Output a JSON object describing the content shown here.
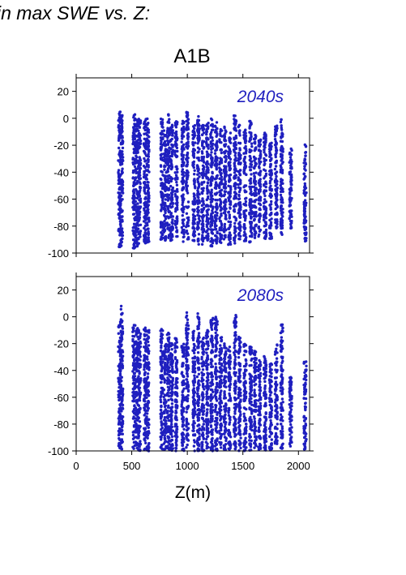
{
  "header": {
    "heading": "in max SWE vs. Z:",
    "scenario": "A1B"
  },
  "colors": {
    "points": "#1f1fbf",
    "axis": "#000000"
  },
  "chart_data": [
    {
      "type": "scatter",
      "panel_label": "2040s",
      "xlabel": "Z(m)",
      "ylabel": "",
      "xlim": [
        0,
        2100
      ],
      "ylim": [
        -100,
        30
      ],
      "x_ticks": [
        0,
        500,
        1000,
        1500,
        2000
      ],
      "y_ticks": [
        20,
        0,
        -20,
        -40,
        -60,
        -80,
        -100
      ],
      "grid": false,
      "elevation_bands": [
        {
          "z": 390,
          "y_min": -96,
          "y_max": 5
        },
        {
          "z": 410,
          "y_min": -95,
          "y_max": 3
        },
        {
          "z": 520,
          "y_min": -97,
          "y_max": 3
        },
        {
          "z": 545,
          "y_min": -95,
          "y_max": 2
        },
        {
          "z": 570,
          "y_min": -93,
          "y_max": 2
        },
        {
          "z": 620,
          "y_min": -93,
          "y_max": 1
        },
        {
          "z": 645,
          "y_min": -92,
          "y_max": 0
        },
        {
          "z": 770,
          "y_min": -90,
          "y_max": 0
        },
        {
          "z": 800,
          "y_min": -92,
          "y_max": -8
        },
        {
          "z": 830,
          "y_min": -90,
          "y_max": 3
        },
        {
          "z": 860,
          "y_min": -91,
          "y_max": -5
        },
        {
          "z": 900,
          "y_min": -88,
          "y_max": -2
        },
        {
          "z": 960,
          "y_min": -93,
          "y_max": 0
        },
        {
          "z": 1000,
          "y_min": -90,
          "y_max": 5
        },
        {
          "z": 1060,
          "y_min": -92,
          "y_max": -5
        },
        {
          "z": 1100,
          "y_min": -94,
          "y_max": 2
        },
        {
          "z": 1140,
          "y_min": -94,
          "y_max": -5
        },
        {
          "z": 1180,
          "y_min": -93,
          "y_max": -3
        },
        {
          "z": 1220,
          "y_min": -95,
          "y_max": 0
        },
        {
          "z": 1260,
          "y_min": -94,
          "y_max": -3
        },
        {
          "z": 1300,
          "y_min": -93,
          "y_max": -8
        },
        {
          "z": 1340,
          "y_min": -90,
          "y_max": -5
        },
        {
          "z": 1380,
          "y_min": -94,
          "y_max": -10
        },
        {
          "z": 1430,
          "y_min": -93,
          "y_max": 2
        },
        {
          "z": 1470,
          "y_min": -90,
          "y_max": -5
        },
        {
          "z": 1520,
          "y_min": -93,
          "y_max": -8
        },
        {
          "z": 1570,
          "y_min": -92,
          "y_max": -2
        },
        {
          "z": 1610,
          "y_min": -90,
          "y_max": -12
        },
        {
          "z": 1650,
          "y_min": -88,
          "y_max": -15
        },
        {
          "z": 1700,
          "y_min": -90,
          "y_max": -10
        },
        {
          "z": 1750,
          "y_min": -90,
          "y_max": -18
        },
        {
          "z": 1800,
          "y_min": -82,
          "y_max": -5
        },
        {
          "z": 1850,
          "y_min": -88,
          "y_max": 0
        },
        {
          "z": 1930,
          "y_min": -82,
          "y_max": -22
        },
        {
          "z": 2060,
          "y_min": -92,
          "y_max": -18
        }
      ]
    },
    {
      "type": "scatter",
      "panel_label": "2080s",
      "xlabel": "Z(m)",
      "ylabel": "",
      "xlim": [
        0,
        2100
      ],
      "ylim": [
        -100,
        30
      ],
      "x_ticks": [
        0,
        500,
        1000,
        1500,
        2000
      ],
      "x_tick_labels": [
        "0",
        "500",
        "1000",
        "1500",
        "2000"
      ],
      "y_ticks": [
        20,
        0,
        -20,
        -40,
        -60,
        -80,
        -100
      ],
      "grid": false,
      "elevation_bands": [
        {
          "z": 390,
          "y_min": -100,
          "y_max": -3
        },
        {
          "z": 410,
          "y_min": -100,
          "y_max": 8
        },
        {
          "z": 520,
          "y_min": -100,
          "y_max": -5
        },
        {
          "z": 545,
          "y_min": -100,
          "y_max": -8
        },
        {
          "z": 570,
          "y_min": -100,
          "y_max": -10
        },
        {
          "z": 620,
          "y_min": -100,
          "y_max": -8
        },
        {
          "z": 645,
          "y_min": -100,
          "y_max": -10
        },
        {
          "z": 770,
          "y_min": -100,
          "y_max": -8
        },
        {
          "z": 800,
          "y_min": -100,
          "y_max": -20
        },
        {
          "z": 830,
          "y_min": -100,
          "y_max": -12
        },
        {
          "z": 860,
          "y_min": -100,
          "y_max": -18
        },
        {
          "z": 900,
          "y_min": -100,
          "y_max": -15
        },
        {
          "z": 960,
          "y_min": -100,
          "y_max": -15
        },
        {
          "z": 1000,
          "y_min": -100,
          "y_max": 5
        },
        {
          "z": 1060,
          "y_min": -100,
          "y_max": -10
        },
        {
          "z": 1100,
          "y_min": -100,
          "y_max": 3
        },
        {
          "z": 1140,
          "y_min": -100,
          "y_max": -15
        },
        {
          "z": 1180,
          "y_min": -100,
          "y_max": -8
        },
        {
          "z": 1220,
          "y_min": -100,
          "y_max": 0
        },
        {
          "z": 1260,
          "y_min": -100,
          "y_max": 1
        },
        {
          "z": 1300,
          "y_min": -100,
          "y_max": -12
        },
        {
          "z": 1340,
          "y_min": -100,
          "y_max": -18
        },
        {
          "z": 1380,
          "y_min": -100,
          "y_max": -22
        },
        {
          "z": 1430,
          "y_min": -100,
          "y_max": 2
        },
        {
          "z": 1470,
          "y_min": -100,
          "y_max": -15
        },
        {
          "z": 1520,
          "y_min": -100,
          "y_max": -20
        },
        {
          "z": 1570,
          "y_min": -100,
          "y_max": -22
        },
        {
          "z": 1610,
          "y_min": -100,
          "y_max": -25
        },
        {
          "z": 1650,
          "y_min": -100,
          "y_max": -30
        },
        {
          "z": 1700,
          "y_min": -100,
          "y_max": -28
        },
        {
          "z": 1750,
          "y_min": -100,
          "y_max": -35
        },
        {
          "z": 1800,
          "y_min": -95,
          "y_max": -20
        },
        {
          "z": 1850,
          "y_min": -100,
          "y_max": -5
        },
        {
          "z": 1930,
          "y_min": -98,
          "y_max": -45
        },
        {
          "z": 2060,
          "y_min": -100,
          "y_max": -33
        }
      ]
    }
  ]
}
